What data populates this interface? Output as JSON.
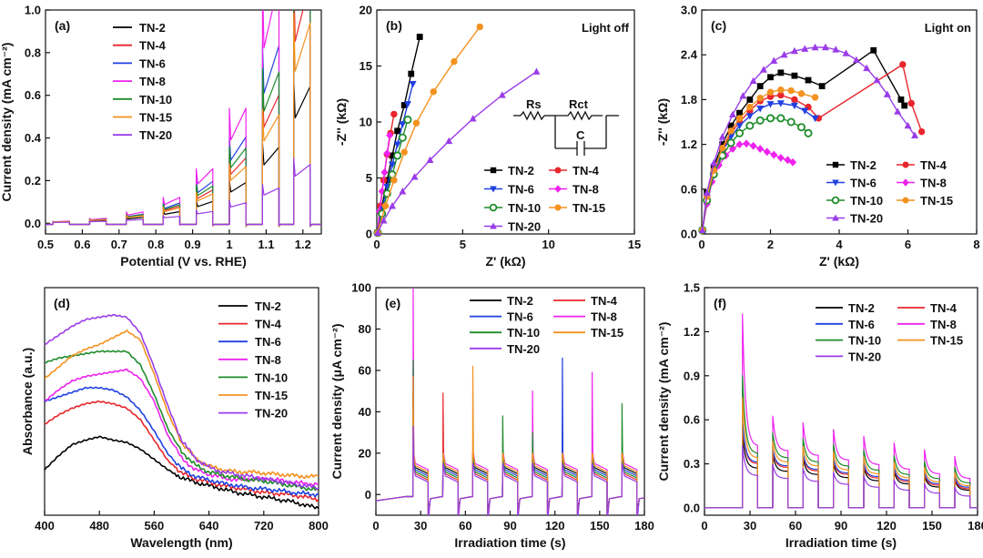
{
  "figure": "Six-panel figure (a)-(f) for TN samples",
  "colors": {
    "TN-2": "#000000",
    "TN-4": "#e8262b",
    "TN-6": "#2040e0",
    "TN-8": "#ee22ee",
    "TN-10": "#1e8c2a",
    "TN-15": "#f39220",
    "TN-20": "#9a3ce8"
  },
  "chart_data": [
    {
      "panel": "(a)",
      "type": "line",
      "title": "",
      "xlabel": "Potential (V vs. RHE)",
      "ylabel": "Current density (mA cm⁻²)",
      "xlim": [
        0.5,
        1.25
      ],
      "ylim": [
        -0.05,
        1.0
      ],
      "xticks": [
        0.5,
        0.6,
        0.7,
        0.8,
        0.9,
        1.0,
        1.1,
        1.2
      ],
      "yticks": [
        0.0,
        0.2,
        0.4,
        0.6,
        0.8,
        1.0
      ],
      "ytick_labels": [
        "0.0",
        "0.2",
        "0.4",
        "0.6",
        "0.8",
        "1.0"
      ],
      "legend": [
        "TN-2",
        "TN-4",
        "TN-6",
        "TN-8",
        "TN-10",
        "TN-15",
        "TN-20"
      ],
      "chopped": {
        "on_starts": [
          0.52,
          0.62,
          0.72,
          0.82,
          0.91,
          1.0,
          1.09,
          1.175
        ],
        "on_width": 0.045,
        "dark": -0.005,
        "plateau_at_0p52": [
          0.005,
          0.006,
          0.006,
          0.007,
          0.006,
          0.006,
          0.004
        ],
        "plateau_growth": [
          1.9,
          2.0,
          2.1,
          2.15,
          2.05,
          1.95,
          1.75
        ],
        "spike_factor": 1.45
      }
    },
    {
      "panel": "(b)",
      "type": "scatter",
      "title": "Light off",
      "xlabel": "Z' (kΩ)",
      "ylabel": "-Z'' (kΩ)",
      "xlim": [
        0,
        15
      ],
      "ylim": [
        0,
        20
      ],
      "xticks": [
        0,
        5,
        10,
        15
      ],
      "yticks": [
        0,
        5,
        10,
        15,
        20
      ],
      "legend": [
        "TN-2",
        "TN-4",
        "TN-6",
        "TN-8",
        "TN-10",
        "TN-15",
        "TN-20"
      ],
      "circuit_labels": [
        "Rs",
        "Rct",
        "C"
      ],
      "series": [
        {
          "name": "TN-2",
          "marker": "square",
          "x": [
            0.05,
            0.3,
            0.6,
            0.9,
            1.2,
            1.6,
            2.0,
            2.5
          ],
          "y": [
            0.1,
            2.5,
            4.8,
            7.0,
            9.2,
            11.5,
            14.3,
            17.6
          ]
        },
        {
          "name": "TN-4",
          "marker": "circle",
          "x": [
            0.05,
            0.2,
            0.4,
            0.6,
            0.8,
            1.0
          ],
          "y": [
            0.1,
            2.5,
            4.8,
            7.1,
            9.0,
            10.7
          ]
        },
        {
          "name": "TN-6",
          "marker": "triangle-down",
          "x": [
            0.05,
            0.3,
            0.6,
            0.9,
            1.2,
            1.5,
            1.8,
            2.1
          ],
          "y": [
            0.1,
            2.2,
            4.2,
            6.2,
            8.0,
            9.8,
            11.6,
            13.4
          ]
        },
        {
          "name": "TN-8",
          "marker": "diamond",
          "x": [
            0.05,
            0.15,
            0.3,
            0.45,
            0.6,
            0.75
          ],
          "y": [
            0.1,
            2.0,
            3.8,
            5.5,
            7.2,
            8.8
          ]
        },
        {
          "name": "TN-10",
          "marker": "circle-half",
          "x": [
            0.05,
            0.3,
            0.6,
            0.9,
            1.2,
            1.5,
            1.8
          ],
          "y": [
            0.1,
            1.8,
            3.6,
            5.3,
            7.0,
            8.6,
            10.2
          ]
        },
        {
          "name": "TN-15",
          "marker": "circle",
          "x": [
            0.05,
            0.5,
            1.0,
            1.6,
            2.3,
            3.3,
            4.5,
            6.0
          ],
          "y": [
            0.1,
            2.5,
            4.8,
            7.3,
            9.9,
            12.7,
            15.4,
            18.5
          ]
        },
        {
          "name": "TN-20",
          "marker": "triangle-up",
          "x": [
            0.05,
            0.4,
            0.9,
            1.5,
            2.2,
            3.1,
            4.2,
            5.6,
            7.3,
            9.3
          ],
          "y": [
            0.1,
            1.2,
            2.5,
            3.8,
            5.1,
            6.6,
            8.3,
            10.3,
            12.4,
            14.5
          ]
        }
      ]
    },
    {
      "panel": "(c)",
      "type": "scatter",
      "title": "Light on",
      "xlabel": "Z' (kΩ)",
      "ylabel": "-Z'' (kΩ)",
      "xlim": [
        0,
        8
      ],
      "ylim": [
        0,
        3.0
      ],
      "xticks": [
        0,
        2,
        4,
        6,
        8
      ],
      "yticks": [
        0.0,
        0.6,
        1.2,
        1.8,
        2.4,
        3.0
      ],
      "ytick_labels": [
        "0.0",
        "0.6",
        "1.2",
        "1.8",
        "2.4",
        "3.0"
      ],
      "legend": [
        "TN-2",
        "TN-4",
        "TN-6",
        "TN-8",
        "TN-10",
        "TN-15",
        "TN-20"
      ],
      "series": [
        {
          "name": "TN-2",
          "marker": "square",
          "x": [
            0.02,
            0.15,
            0.35,
            0.6,
            0.85,
            1.1,
            1.4,
            1.7,
            2.0,
            2.3,
            2.7,
            3.1,
            3.5,
            5.0,
            5.8,
            5.9
          ],
          "y": [
            0.05,
            0.55,
            0.9,
            1.2,
            1.45,
            1.62,
            1.8,
            1.98,
            2.1,
            2.16,
            2.12,
            2.06,
            1.98,
            2.46,
            1.8,
            1.72
          ]
        },
        {
          "name": "TN-4",
          "marker": "circle",
          "x": [
            0.02,
            0.15,
            0.35,
            0.6,
            0.85,
            1.1,
            1.4,
            1.7,
            2.0,
            2.3,
            2.7,
            3.1,
            3.4,
            5.85,
            6.1,
            6.4
          ],
          "y": [
            0.05,
            0.5,
            0.85,
            1.12,
            1.35,
            1.5,
            1.65,
            1.78,
            1.84,
            1.86,
            1.8,
            1.7,
            1.55,
            2.27,
            1.75,
            1.37
          ]
        },
        {
          "name": "TN-6",
          "marker": "triangle-down",
          "x": [
            0.02,
            0.15,
            0.35,
            0.6,
            0.85,
            1.1,
            1.4,
            1.7,
            2.0,
            2.3,
            2.7,
            3.0,
            3.3
          ],
          "y": [
            0.05,
            0.48,
            0.82,
            1.1,
            1.3,
            1.45,
            1.58,
            1.68,
            1.74,
            1.75,
            1.72,
            1.65,
            1.55
          ]
        },
        {
          "name": "TN-8",
          "marker": "diamond",
          "x": [
            0.02,
            0.15,
            0.3,
            0.5,
            0.7,
            0.9,
            1.1,
            1.3,
            1.5,
            1.7,
            1.9,
            2.1,
            2.3,
            2.5,
            2.65
          ],
          "y": [
            0.05,
            0.4,
            0.7,
            0.92,
            1.05,
            1.14,
            1.2,
            1.21,
            1.18,
            1.14,
            1.1,
            1.06,
            1.02,
            0.99,
            0.96
          ]
        },
        {
          "name": "TN-10",
          "marker": "circle-half",
          "x": [
            0.02,
            0.15,
            0.35,
            0.6,
            0.85,
            1.1,
            1.4,
            1.7,
            2.0,
            2.3,
            2.6,
            2.9,
            3.1
          ],
          "y": [
            0.05,
            0.45,
            0.8,
            1.05,
            1.22,
            1.35,
            1.45,
            1.52,
            1.55,
            1.55,
            1.5,
            1.43,
            1.35
          ]
        },
        {
          "name": "TN-15",
          "marker": "circle",
          "x": [
            0.02,
            0.15,
            0.35,
            0.6,
            0.85,
            1.1,
            1.4,
            1.7,
            2.0,
            2.3,
            2.6,
            2.9,
            3.3
          ],
          "y": [
            0.05,
            0.5,
            0.85,
            1.15,
            1.38,
            1.55,
            1.7,
            1.82,
            1.9,
            1.93,
            1.92,
            1.88,
            1.83
          ]
        },
        {
          "name": "TN-20",
          "marker": "triangle-up",
          "x": [
            0.02,
            0.15,
            0.35,
            0.6,
            0.9,
            1.2,
            1.5,
            1.8,
            2.1,
            2.4,
            2.7,
            3.0,
            3.3,
            3.6,
            3.9,
            4.2,
            4.5,
            4.8,
            5.1,
            5.4,
            5.7,
            6.0,
            6.2
          ],
          "y": [
            0.05,
            0.55,
            0.95,
            1.3,
            1.6,
            1.85,
            2.05,
            2.2,
            2.32,
            2.4,
            2.45,
            2.48,
            2.5,
            2.5,
            2.47,
            2.42,
            2.33,
            2.22,
            2.06,
            1.87,
            1.64,
            1.45,
            1.32
          ]
        }
      ]
    },
    {
      "panel": "(d)",
      "type": "line",
      "title": "",
      "xlabel": "Wavelength (nm)",
      "ylabel": "Absorbance (a.u.)",
      "xlim": [
        400,
        800
      ],
      "ylim": [
        0,
        1.0
      ],
      "xticks": [
        400,
        480,
        560,
        640,
        720,
        800
      ],
      "yticks": [],
      "legend": [
        "TN-2",
        "TN-4",
        "TN-6",
        "TN-8",
        "TN-10",
        "TN-15",
        "TN-20"
      ],
      "x": [
        400,
        420,
        440,
        460,
        480,
        500,
        520,
        540,
        560,
        580,
        600,
        620,
        640,
        660,
        680,
        700,
        720,
        740,
        760,
        780,
        800
      ],
      "series": [
        {
          "name": "TN-2",
          "values": [
            0.2,
            0.26,
            0.31,
            0.33,
            0.345,
            0.33,
            0.32,
            0.29,
            0.245,
            0.2,
            0.165,
            0.145,
            0.13,
            0.115,
            0.1,
            0.09,
            0.08,
            0.07,
            0.06,
            0.045,
            0.03
          ]
        },
        {
          "name": "TN-4",
          "values": [
            0.4,
            0.44,
            0.47,
            0.49,
            0.5,
            0.49,
            0.47,
            0.42,
            0.33,
            0.24,
            0.185,
            0.16,
            0.145,
            0.13,
            0.12,
            0.11,
            0.1,
            0.095,
            0.09,
            0.08,
            0.07
          ]
        },
        {
          "name": "TN-6",
          "values": [
            0.5,
            0.52,
            0.54,
            0.56,
            0.56,
            0.55,
            0.52,
            0.46,
            0.37,
            0.27,
            0.205,
            0.17,
            0.155,
            0.14,
            0.13,
            0.12,
            0.115,
            0.11,
            0.1,
            0.095,
            0.09
          ]
        },
        {
          "name": "TN-8",
          "values": [
            0.5,
            0.55,
            0.59,
            0.61,
            0.62,
            0.63,
            0.64,
            0.6,
            0.5,
            0.35,
            0.25,
            0.2,
            0.18,
            0.165,
            0.155,
            0.16,
            0.16,
            0.155,
            0.145,
            0.14,
            0.135
          ]
        },
        {
          "name": "TN-10",
          "values": [
            0.67,
            0.69,
            0.7,
            0.71,
            0.72,
            0.72,
            0.72,
            0.66,
            0.53,
            0.38,
            0.28,
            0.22,
            0.19,
            0.175,
            0.165,
            0.155,
            0.15,
            0.14,
            0.13,
            0.12,
            0.11
          ]
        },
        {
          "name": "TN-15",
          "values": [
            0.6,
            0.65,
            0.7,
            0.73,
            0.75,
            0.78,
            0.81,
            0.77,
            0.62,
            0.45,
            0.32,
            0.25,
            0.215,
            0.2,
            0.19,
            0.19,
            0.185,
            0.18,
            0.175,
            0.17,
            0.17
          ]
        },
        {
          "name": "TN-20",
          "values": [
            0.75,
            0.79,
            0.83,
            0.86,
            0.87,
            0.88,
            0.87,
            0.8,
            0.65,
            0.48,
            0.33,
            0.25,
            0.21,
            0.19,
            0.18,
            0.17,
            0.16,
            0.15,
            0.14,
            0.13,
            0.12
          ]
        }
      ]
    },
    {
      "panel": "(e)",
      "type": "line",
      "title": "",
      "xlabel": "Irradiation time (s)",
      "ylabel": "Current density (μA cm⁻²)",
      "xlim": [
        0,
        180
      ],
      "ylim": [
        -10,
        100
      ],
      "xticks": [
        0,
        30,
        60,
        90,
        120,
        150,
        180
      ],
      "yticks": [
        0,
        20,
        40,
        60,
        80,
        100
      ],
      "legend": [
        "TN-2",
        "TN-4",
        "TN-6",
        "TN-8",
        "TN-10",
        "TN-15",
        "TN-20"
      ],
      "on_starts": [
        25,
        45,
        65,
        85,
        105,
        125,
        145,
        165
      ],
      "on_width": 10,
      "series": [
        {
          "name": "TN-2",
          "plateau": 10,
          "spikes": [
            48,
            20,
            20,
            20,
            20,
            20,
            20,
            20
          ]
        },
        {
          "name": "TN-4",
          "plateau": 7,
          "spikes": [
            50,
            49,
            20,
            20,
            20,
            20,
            20,
            20
          ]
        },
        {
          "name": "TN-6",
          "plateau": 9,
          "spikes": [
            60,
            20,
            20,
            20,
            20,
            66,
            20,
            20
          ]
        },
        {
          "name": "TN-8",
          "plateau": 12,
          "spikes": [
            100,
            20,
            20,
            20,
            50,
            20,
            59,
            20
          ]
        },
        {
          "name": "TN-10",
          "plateau": 8,
          "spikes": [
            65,
            20,
            20,
            38,
            30,
            20,
            20,
            44
          ]
        },
        {
          "name": "TN-15",
          "plateau": 11,
          "spikes": [
            57,
            20,
            62,
            20,
            20,
            20,
            20,
            20
          ]
        },
        {
          "name": "TN-20",
          "plateau": 6,
          "spikes": [
            33,
            15,
            15,
            15,
            15,
            15,
            15,
            15
          ]
        }
      ]
    },
    {
      "panel": "(f)",
      "type": "line",
      "title": "",
      "xlabel": "Irradiation time (s)",
      "ylabel": "Current density (mA cm⁻²)",
      "xlim": [
        0,
        180
      ],
      "ylim": [
        -0.05,
        1.5
      ],
      "xticks": [
        0,
        30,
        60,
        90,
        120,
        150,
        180
      ],
      "yticks": [
        0.0,
        0.3,
        0.6,
        0.9,
        1.2,
        1.5
      ],
      "ytick_labels": [
        "0.0",
        "0.3",
        "0.6",
        "0.9",
        "1.2",
        "1.5"
      ],
      "legend": [
        "TN-2",
        "TN-4",
        "TN-6",
        "TN-8",
        "TN-10",
        "TN-15",
        "TN-20"
      ],
      "on_starts": [
        25,
        45,
        65,
        85,
        105,
        125,
        145,
        165
      ],
      "on_width": 10,
      "series": [
        {
          "name": "TN-2",
          "first_peak": 0.5,
          "first_end": 0.27,
          "last_plateau": 0.12,
          "decay": 0.12
        },
        {
          "name": "TN-4",
          "first_peak": 0.58,
          "first_end": 0.3,
          "last_plateau": 0.13,
          "decay": 0.12
        },
        {
          "name": "TN-6",
          "first_peak": 0.6,
          "first_end": 0.31,
          "last_plateau": 0.14,
          "decay": 0.12
        },
        {
          "name": "TN-8",
          "first_peak": 1.32,
          "first_end": 0.42,
          "last_plateau": 0.2,
          "decay": 0.25
        },
        {
          "name": "TN-10",
          "first_peak": 0.9,
          "first_end": 0.37,
          "last_plateau": 0.17,
          "decay": 0.18
        },
        {
          "name": "TN-15",
          "first_peak": 0.75,
          "first_end": 0.34,
          "last_plateau": 0.15,
          "decay": 0.15
        },
        {
          "name": "TN-20",
          "first_peak": 0.42,
          "first_end": 0.22,
          "last_plateau": 0.08,
          "decay": 0.1
        }
      ]
    }
  ]
}
